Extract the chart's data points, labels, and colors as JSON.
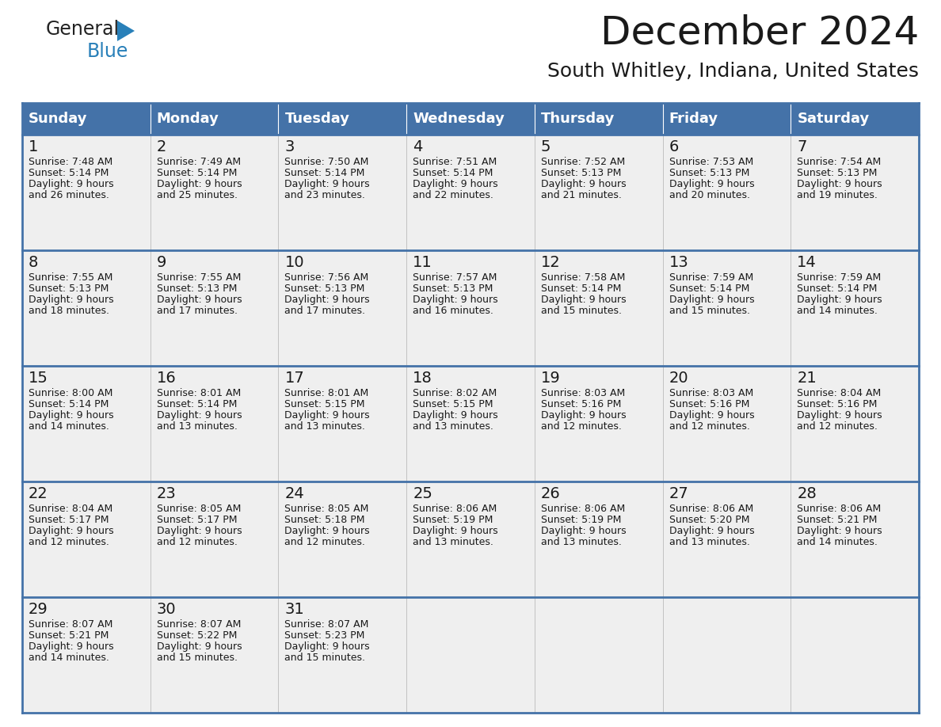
{
  "title": "December 2024",
  "subtitle": "South Whitley, Indiana, United States",
  "header_bg": "#4472A8",
  "header_text_color": "#FFFFFF",
  "cell_bg": "#EFEFEF",
  "divider_color": "#4472A8",
  "day_names": [
    "Sunday",
    "Monday",
    "Tuesday",
    "Wednesday",
    "Thursday",
    "Friday",
    "Saturday"
  ],
  "days": [
    {
      "day": 1,
      "col": 0,
      "row": 0,
      "sunrise": "7:48 AM",
      "sunset": "5:14 PM",
      "dl_hours": "9 hours",
      "dl_min": "and 26 minutes."
    },
    {
      "day": 2,
      "col": 1,
      "row": 0,
      "sunrise": "7:49 AM",
      "sunset": "5:14 PM",
      "dl_hours": "9 hours",
      "dl_min": "and 25 minutes."
    },
    {
      "day": 3,
      "col": 2,
      "row": 0,
      "sunrise": "7:50 AM",
      "sunset": "5:14 PM",
      "dl_hours": "9 hours",
      "dl_min": "and 23 minutes."
    },
    {
      "day": 4,
      "col": 3,
      "row": 0,
      "sunrise": "7:51 AM",
      "sunset": "5:14 PM",
      "dl_hours": "9 hours",
      "dl_min": "and 22 minutes."
    },
    {
      "day": 5,
      "col": 4,
      "row": 0,
      "sunrise": "7:52 AM",
      "sunset": "5:13 PM",
      "dl_hours": "9 hours",
      "dl_min": "and 21 minutes."
    },
    {
      "day": 6,
      "col": 5,
      "row": 0,
      "sunrise": "7:53 AM",
      "sunset": "5:13 PM",
      "dl_hours": "9 hours",
      "dl_min": "and 20 minutes."
    },
    {
      "day": 7,
      "col": 6,
      "row": 0,
      "sunrise": "7:54 AM",
      "sunset": "5:13 PM",
      "dl_hours": "9 hours",
      "dl_min": "and 19 minutes."
    },
    {
      "day": 8,
      "col": 0,
      "row": 1,
      "sunrise": "7:55 AM",
      "sunset": "5:13 PM",
      "dl_hours": "9 hours",
      "dl_min": "and 18 minutes."
    },
    {
      "day": 9,
      "col": 1,
      "row": 1,
      "sunrise": "7:55 AM",
      "sunset": "5:13 PM",
      "dl_hours": "9 hours",
      "dl_min": "and 17 minutes."
    },
    {
      "day": 10,
      "col": 2,
      "row": 1,
      "sunrise": "7:56 AM",
      "sunset": "5:13 PM",
      "dl_hours": "9 hours",
      "dl_min": "and 17 minutes."
    },
    {
      "day": 11,
      "col": 3,
      "row": 1,
      "sunrise": "7:57 AM",
      "sunset": "5:13 PM",
      "dl_hours": "9 hours",
      "dl_min": "and 16 minutes."
    },
    {
      "day": 12,
      "col": 4,
      "row": 1,
      "sunrise": "7:58 AM",
      "sunset": "5:14 PM",
      "dl_hours": "9 hours",
      "dl_min": "and 15 minutes."
    },
    {
      "day": 13,
      "col": 5,
      "row": 1,
      "sunrise": "7:59 AM",
      "sunset": "5:14 PM",
      "dl_hours": "9 hours",
      "dl_min": "and 15 minutes."
    },
    {
      "day": 14,
      "col": 6,
      "row": 1,
      "sunrise": "7:59 AM",
      "sunset": "5:14 PM",
      "dl_hours": "9 hours",
      "dl_min": "and 14 minutes."
    },
    {
      "day": 15,
      "col": 0,
      "row": 2,
      "sunrise": "8:00 AM",
      "sunset": "5:14 PM",
      "dl_hours": "9 hours",
      "dl_min": "and 14 minutes."
    },
    {
      "day": 16,
      "col": 1,
      "row": 2,
      "sunrise": "8:01 AM",
      "sunset": "5:14 PM",
      "dl_hours": "9 hours",
      "dl_min": "and 13 minutes."
    },
    {
      "day": 17,
      "col": 2,
      "row": 2,
      "sunrise": "8:01 AM",
      "sunset": "5:15 PM",
      "dl_hours": "9 hours",
      "dl_min": "and 13 minutes."
    },
    {
      "day": 18,
      "col": 3,
      "row": 2,
      "sunrise": "8:02 AM",
      "sunset": "5:15 PM",
      "dl_hours": "9 hours",
      "dl_min": "and 13 minutes."
    },
    {
      "day": 19,
      "col": 4,
      "row": 2,
      "sunrise": "8:03 AM",
      "sunset": "5:16 PM",
      "dl_hours": "9 hours",
      "dl_min": "and 12 minutes."
    },
    {
      "day": 20,
      "col": 5,
      "row": 2,
      "sunrise": "8:03 AM",
      "sunset": "5:16 PM",
      "dl_hours": "9 hours",
      "dl_min": "and 12 minutes."
    },
    {
      "day": 21,
      "col": 6,
      "row": 2,
      "sunrise": "8:04 AM",
      "sunset": "5:16 PM",
      "dl_hours": "9 hours",
      "dl_min": "and 12 minutes."
    },
    {
      "day": 22,
      "col": 0,
      "row": 3,
      "sunrise": "8:04 AM",
      "sunset": "5:17 PM",
      "dl_hours": "9 hours",
      "dl_min": "and 12 minutes."
    },
    {
      "day": 23,
      "col": 1,
      "row": 3,
      "sunrise": "8:05 AM",
      "sunset": "5:17 PM",
      "dl_hours": "9 hours",
      "dl_min": "and 12 minutes."
    },
    {
      "day": 24,
      "col": 2,
      "row": 3,
      "sunrise": "8:05 AM",
      "sunset": "5:18 PM",
      "dl_hours": "9 hours",
      "dl_min": "and 12 minutes."
    },
    {
      "day": 25,
      "col": 3,
      "row": 3,
      "sunrise": "8:06 AM",
      "sunset": "5:19 PM",
      "dl_hours": "9 hours",
      "dl_min": "and 13 minutes."
    },
    {
      "day": 26,
      "col": 4,
      "row": 3,
      "sunrise": "8:06 AM",
      "sunset": "5:19 PM",
      "dl_hours": "9 hours",
      "dl_min": "and 13 minutes."
    },
    {
      "day": 27,
      "col": 5,
      "row": 3,
      "sunrise": "8:06 AM",
      "sunset": "5:20 PM",
      "dl_hours": "9 hours",
      "dl_min": "and 13 minutes."
    },
    {
      "day": 28,
      "col": 6,
      "row": 3,
      "sunrise": "8:06 AM",
      "sunset": "5:21 PM",
      "dl_hours": "9 hours",
      "dl_min": "and 14 minutes."
    },
    {
      "day": 29,
      "col": 0,
      "row": 4,
      "sunrise": "8:07 AM",
      "sunset": "5:21 PM",
      "dl_hours": "9 hours",
      "dl_min": "and 14 minutes."
    },
    {
      "day": 30,
      "col": 1,
      "row": 4,
      "sunrise": "8:07 AM",
      "sunset": "5:22 PM",
      "dl_hours": "9 hours",
      "dl_min": "and 15 minutes."
    },
    {
      "day": 31,
      "col": 2,
      "row": 4,
      "sunrise": "8:07 AM",
      "sunset": "5:23 PM",
      "dl_hours": "9 hours",
      "dl_min": "and 15 minutes."
    }
  ],
  "num_rows": 5,
  "num_cols": 7,
  "logo_text_general": "General",
  "logo_text_blue": "Blue",
  "logo_color_general": "#222222",
  "logo_color_blue": "#2980B9",
  "logo_triangle_color": "#2980B9",
  "title_fontsize": 36,
  "subtitle_fontsize": 18,
  "header_fontsize": 13,
  "day_num_fontsize": 14,
  "cell_text_fontsize": 9
}
